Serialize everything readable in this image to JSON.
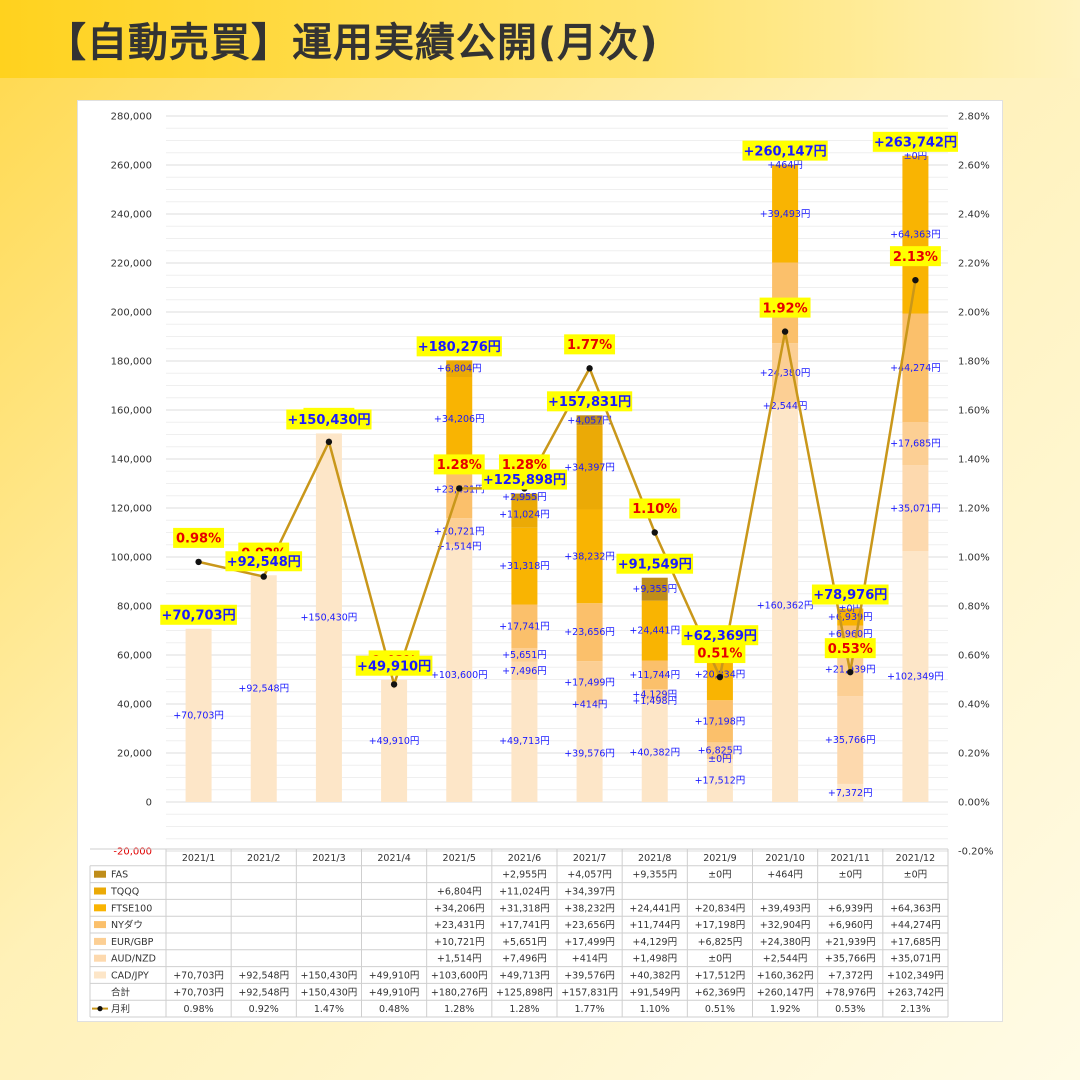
{
  "page": {
    "title": "【自動売買】運用実績公開(月次)"
  },
  "chart_data": {
    "type": "bar",
    "stacked": true,
    "categories": [
      "2021/1",
      "2021/2",
      "2021/3",
      "2021/4",
      "2021/5",
      "2021/6",
      "2021/7",
      "2021/8",
      "2021/9",
      "2021/10",
      "2021/11",
      "2021/12"
    ],
    "ylim": [
      -20000,
      280000
    ],
    "y2lim": [
      -0.2,
      2.8
    ],
    "y_ticks": [
      "-20,000",
      "0",
      "20,000",
      "40,000",
      "60,000",
      "80,000",
      "100,000",
      "120,000",
      "140,000",
      "160,000",
      "180,000",
      "200,000",
      "220,000",
      "240,000",
      "260,000",
      "280,000"
    ],
    "y2_ticks": [
      "-0.20%",
      "0.00%",
      "0.20%",
      "0.40%",
      "0.60%",
      "0.80%",
      "1.00%",
      "1.20%",
      "1.40%",
      "1.60%",
      "1.80%",
      "2.00%",
      "2.20%",
      "2.40%",
      "2.60%",
      "2.80%"
    ],
    "grid": true,
    "series": [
      {
        "name": "CAD/JPY",
        "color": "#fde6c8",
        "values": [
          70703,
          92548,
          150430,
          49910,
          103600,
          49713,
          39576,
          40382,
          17512,
          160362,
          7372,
          102349
        ],
        "labels": [
          "+70,703円",
          "+92,548円",
          "+150,430円",
          "+49,910円",
          "+103,600円",
          "+49,713円",
          "+39,576円",
          "+40,382円",
          "+17,512円",
          "+160,362円",
          "+7,372円",
          "+102,349円"
        ]
      },
      {
        "name": "AUD/NZD",
        "color": "#fdd9ae",
        "values": [
          null,
          null,
          null,
          null,
          1514,
          7496,
          414,
          1498,
          0,
          2544,
          35766,
          35071
        ],
        "labels": [
          "",
          "",
          "",
          "",
          "+1,514円",
          "+7,496円",
          "+414円",
          "+1,498円",
          "±0円",
          "+2,544円",
          "+35,766円",
          "+35,071円"
        ]
      },
      {
        "name": "EUR/GBP",
        "color": "#fccf94",
        "values": [
          null,
          null,
          null,
          null,
          10721,
          5651,
          17499,
          4129,
          6825,
          24380,
          21939,
          17685
        ],
        "labels": [
          "",
          "",
          "",
          "",
          "+10,721円",
          "+5,651円",
          "+17,499円",
          "+4,129円",
          "+6,825円",
          "+24,380円",
          "+21,939円",
          "+17,685円"
        ]
      },
      {
        "name": "NYダウ",
        "color": "#fbc06b",
        "values": [
          null,
          null,
          null,
          null,
          23431,
          17741,
          23656,
          11744,
          17198,
          32904,
          6960,
          44274
        ],
        "labels": [
          "",
          "",
          "",
          "",
          "+23,431円",
          "+17,741円",
          "+23,656円",
          "+11,744円",
          "+17,198円",
          "+32,904円",
          "+6,960円",
          "+44,274円"
        ]
      },
      {
        "name": "FTSE100",
        "color": "#f9b402",
        "values": [
          null,
          null,
          null,
          null,
          34206,
          31318,
          38232,
          24441,
          20834,
          39493,
          6939,
          64363
        ],
        "labels": [
          "",
          "",
          "",
          "",
          "+34,206円",
          "+31,318円",
          "+38,232円",
          "+24,441円",
          "+20,834円",
          "+39,493円",
          "+6,939円",
          "+64,363円"
        ]
      },
      {
        "name": "TQQQ",
        "color": "#ebaa06",
        "values": [
          null,
          null,
          null,
          null,
          6804,
          11024,
          34397,
          null,
          null,
          null,
          null,
          null
        ],
        "labels": [
          "",
          "",
          "",
          "",
          "+6,804円",
          "+11,024円",
          "+34,397円",
          "",
          "",
          "",
          "",
          ""
        ]
      },
      {
        "name": "FAS",
        "color": "#bf8d1a",
        "values": [
          null,
          null,
          null,
          null,
          null,
          2955,
          4057,
          9355,
          0,
          464,
          0,
          0
        ],
        "labels": [
          "",
          "",
          "",
          "",
          "",
          "+2,955円",
          "+4,057円",
          "+9,355円",
          "±0円",
          "+464円",
          "±0円",
          "±0円"
        ]
      }
    ],
    "totals": [
      70703,
      92548,
      150430,
      49910,
      180276,
      125898,
      157831,
      91549,
      62369,
      260147,
      78976,
      263742
    ],
    "total_labels": [
      "+70,703円",
      "+92,548円",
      "+150,430円",
      "+49,910円",
      "+180,276円",
      "+125,898円",
      "+157,831円",
      "+91,549円",
      "+62,369円",
      "+260,147円",
      "+78,976円",
      "+263,742円"
    ],
    "total_name": "合計",
    "line": {
      "name": "月利",
      "color": "#c9971a",
      "values": [
        0.98,
        0.92,
        1.47,
        0.48,
        1.28,
        1.28,
        1.77,
        1.1,
        0.51,
        1.92,
        0.53,
        2.13
      ],
      "labels": [
        "0.98%",
        "0.92%",
        "1.47%",
        "0.48%",
        "1.28%",
        "1.28%",
        "1.77%",
        "1.10%",
        "0.51%",
        "1.92%",
        "0.53%",
        "2.13%"
      ]
    }
  }
}
